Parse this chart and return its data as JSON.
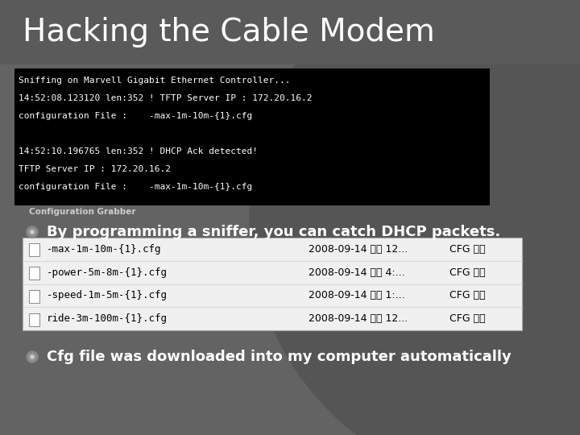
{
  "title": "Hacking the Cable Modem",
  "title_color": "#ffffff",
  "title_fontsize": 28,
  "bg_color": "#636363",
  "terminal_lines": [
    "Sniffing on Marvell Gigabit Ethernet Controller...",
    "14:52:08.123120 len:352 ! TFTP Server IP : 172.20.16.2",
    "configuration File :    -max-1m-10m-{1}.cfg",
    "",
    "14:52:10.196765 len:352 ! DHCP Ack detected!",
    "TFTP Server IP : 172.20.16.2",
    "configuration File :    -max-1m-10m-{1}.cfg"
  ],
  "caption": "Configuration Grabber",
  "bullet1": "By programming a sniffer, you can catch DHCP packets.",
  "bullet2": "Cfg file was downloaded into my computer automatically",
  "file_rows": [
    [
      "-max-1m-10m-{1}.cfg",
      "2008-09-14 오전 12...",
      "CFG 파일"
    ],
    [
      "-power-5m-8m-{1}.cfg",
      "2008-09-14 오후 4:...",
      "CFG 파일"
    ],
    [
      "-speed-1m-5m-{1}.cfg",
      "2008-09-14 오전 1:...",
      "CFG 파일"
    ],
    [
      "ride-3m-100m-{1}.cfg",
      "2008-09-14 오전 12...",
      "CFG 파일"
    ]
  ],
  "bullet_color": "#ffffff",
  "bullet_fontsize": 13,
  "terminal_bg": "#000000",
  "terminal_text_color": "#ffffff",
  "terminal_fontsize": 8,
  "file_table_bg": "#f0f0f0",
  "file_table_text": "#000000",
  "arc_color": "#555555",
  "caption_color": "#cccccc",
  "caption_fontsize": 7.5
}
